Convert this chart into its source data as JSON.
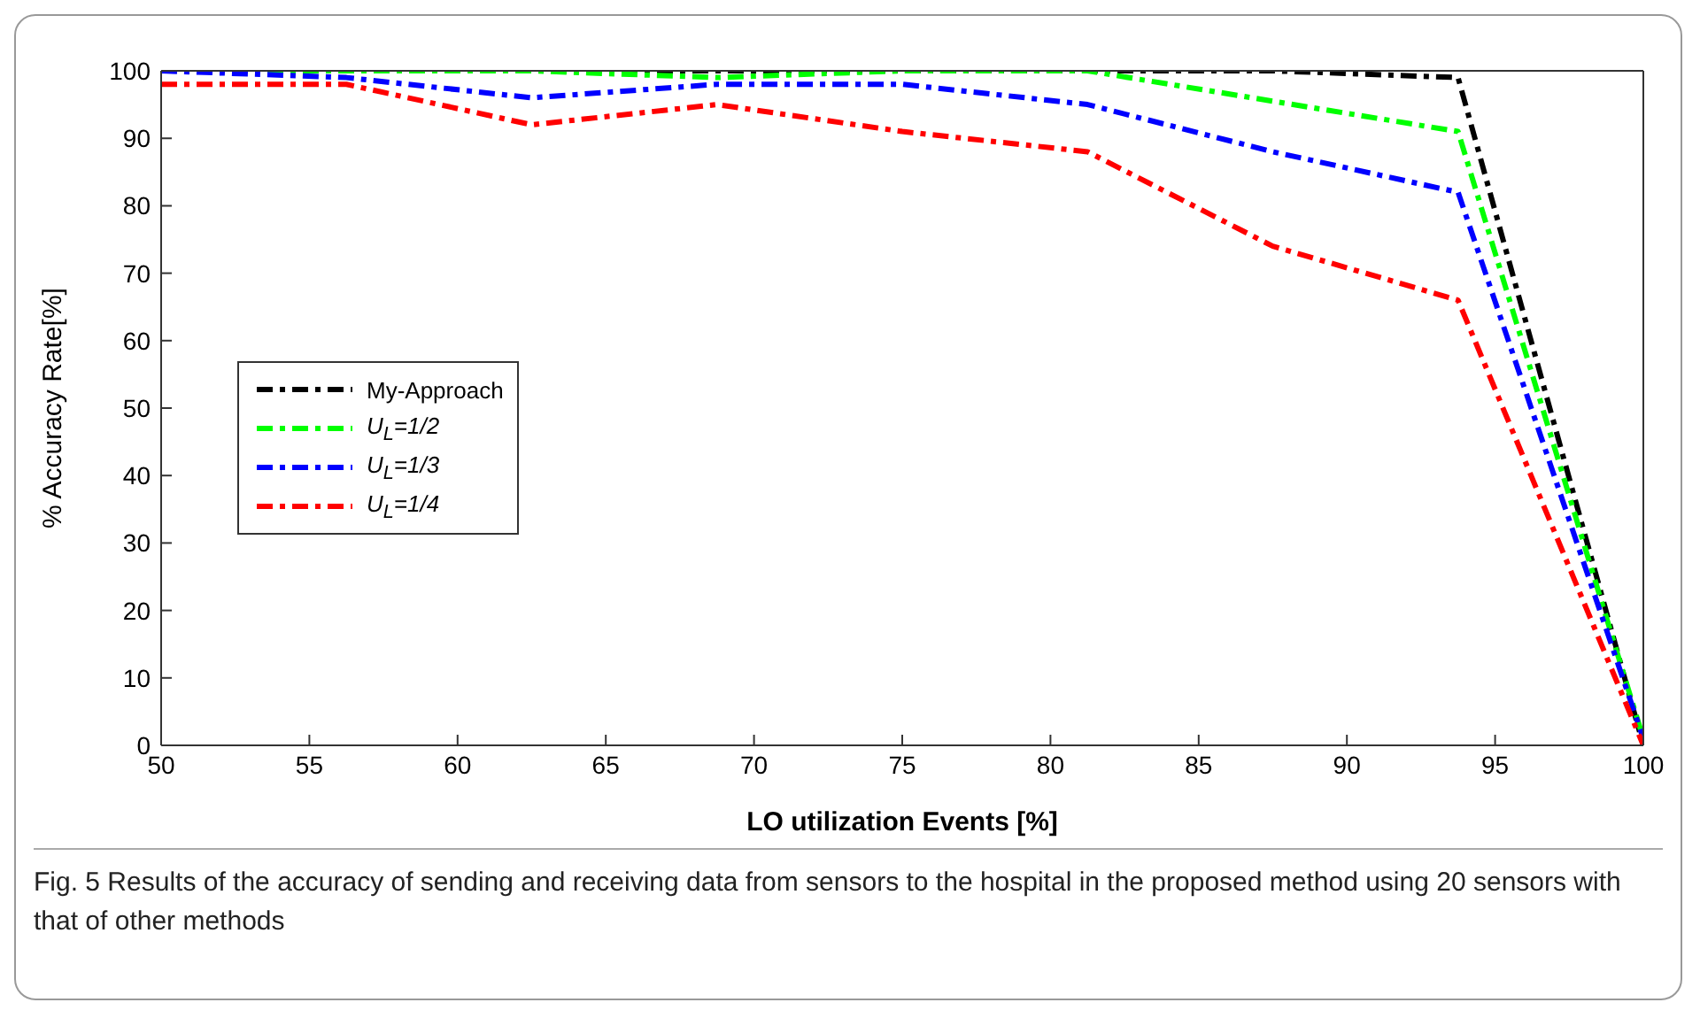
{
  "chart_data": {
    "type": "line",
    "xlabel": "LO utilization Events [%]",
    "ylabel": "% Accuracy Rate[%]",
    "annotations": [
      "Fig. 5 Results of the accuracy of sending and receiving data from sensors to the hospital in the proposed method using 20 sensors with that of other methods"
    ],
    "x": [
      50,
      56.25,
      62.5,
      68.75,
      75,
      81.25,
      87.5,
      93.75,
      100
    ],
    "series": [
      {
        "name": "My-Approach",
        "color": "#000000",
        "values": [
          100,
          100,
          100,
          100,
          100,
          100,
          100,
          99,
          0
        ]
      },
      {
        "name": "U$_{L}$=1/2",
        "color": "#00ff00",
        "values": [
          100,
          100,
          100,
          99,
          100,
          100,
          95.5,
          91,
          1
        ]
      },
      {
        "name": "U$_{L}$=1/3",
        "color": "#0000ff",
        "values": [
          100,
          99,
          96,
          98,
          98,
          95,
          88,
          82,
          1
        ]
      },
      {
        "name": "U$_{L}$=1/4",
        "color": "#ff0000",
        "values": [
          98,
          98,
          92,
          95,
          91,
          88,
          74,
          66,
          0
        ]
      }
    ],
    "xlim": [
      50,
      100
    ],
    "xticks": [
      50,
      55,
      60,
      65,
      70,
      75,
      80,
      85,
      90,
      95,
      100
    ],
    "ylim": [
      0,
      100
    ],
    "yticks": [
      0,
      10,
      20,
      30,
      40,
      50,
      60,
      70,
      80,
      90,
      100
    ],
    "legend": "left",
    "line_style": "dashed",
    "marker": "none",
    "grid": false
  }
}
